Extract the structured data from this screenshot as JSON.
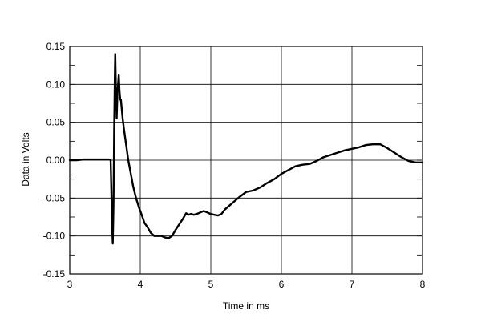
{
  "chart_data": {
    "type": "line",
    "title": "",
    "xlabel": "Time in ms",
    "ylabel": "Data in Volts",
    "xlim": [
      3,
      8
    ],
    "ylim": [
      -0.15,
      0.15
    ],
    "x_ticks": [
      3,
      4,
      5,
      6,
      7,
      8
    ],
    "x_tick_labels": [
      "3",
      "4",
      "5",
      "6",
      "7",
      "8"
    ],
    "y_ticks": [
      -0.15,
      -0.1,
      -0.05,
      0.0,
      0.05,
      0.1,
      0.15
    ],
    "y_tick_labels": [
      "-0.15",
      "-0.10",
      "-0.05",
      "0.00",
      "0.05",
      "0.10",
      "0.15"
    ],
    "grid": true,
    "minor_y_step": 0.025,
    "series": [
      {
        "color": "#000000",
        "x": [
          3.0,
          3.1,
          3.2,
          3.3,
          3.4,
          3.5,
          3.56,
          3.58,
          3.59,
          3.6,
          3.61,
          3.62,
          3.63,
          3.64,
          3.645,
          3.655,
          3.665,
          3.675,
          3.685,
          3.695,
          3.705,
          3.715,
          3.725,
          3.735,
          3.75,
          3.77,
          3.8,
          3.83,
          3.86,
          3.9,
          3.94,
          3.98,
          4.02,
          4.06,
          4.1,
          4.15,
          4.2,
          4.25,
          4.3,
          4.35,
          4.4,
          4.45,
          4.5,
          4.55,
          4.6,
          4.65,
          4.68,
          4.72,
          4.76,
          4.8,
          4.85,
          4.9,
          4.95,
          5.0,
          5.05,
          5.1,
          5.15,
          5.2,
          5.3,
          5.4,
          5.5,
          5.6,
          5.7,
          5.8,
          5.9,
          6.0,
          6.1,
          6.2,
          6.3,
          6.4,
          6.5,
          6.6,
          6.7,
          6.8,
          6.9,
          7.0,
          7.1,
          7.2,
          7.3,
          7.4,
          7.5,
          7.6,
          7.7,
          7.8,
          7.9,
          8.0
        ],
        "y": [
          0.0,
          0.0,
          0.001,
          0.001,
          0.001,
          0.001,
          0.001,
          0.0,
          -0.04,
          -0.085,
          -0.11,
          -0.06,
          0.04,
          0.115,
          0.14,
          0.09,
          0.055,
          0.085,
          0.1,
          0.112,
          0.092,
          0.08,
          0.08,
          0.07,
          0.055,
          0.04,
          0.02,
          0.0,
          -0.015,
          -0.035,
          -0.05,
          -0.062,
          -0.072,
          -0.083,
          -0.088,
          -0.096,
          -0.1,
          -0.1,
          -0.1,
          -0.102,
          -0.103,
          -0.1,
          -0.092,
          -0.085,
          -0.078,
          -0.07,
          -0.072,
          -0.071,
          -0.072,
          -0.071,
          -0.069,
          -0.067,
          -0.069,
          -0.071,
          -0.072,
          -0.073,
          -0.071,
          -0.065,
          -0.057,
          -0.049,
          -0.042,
          -0.04,
          -0.036,
          -0.03,
          -0.025,
          -0.018,
          -0.013,
          -0.008,
          -0.006,
          -0.005,
          -0.001,
          0.004,
          0.007,
          0.01,
          0.013,
          0.015,
          0.017,
          0.02,
          0.021,
          0.021,
          0.016,
          0.01,
          0.004,
          -0.001,
          -0.003,
          -0.003
        ]
      }
    ]
  }
}
